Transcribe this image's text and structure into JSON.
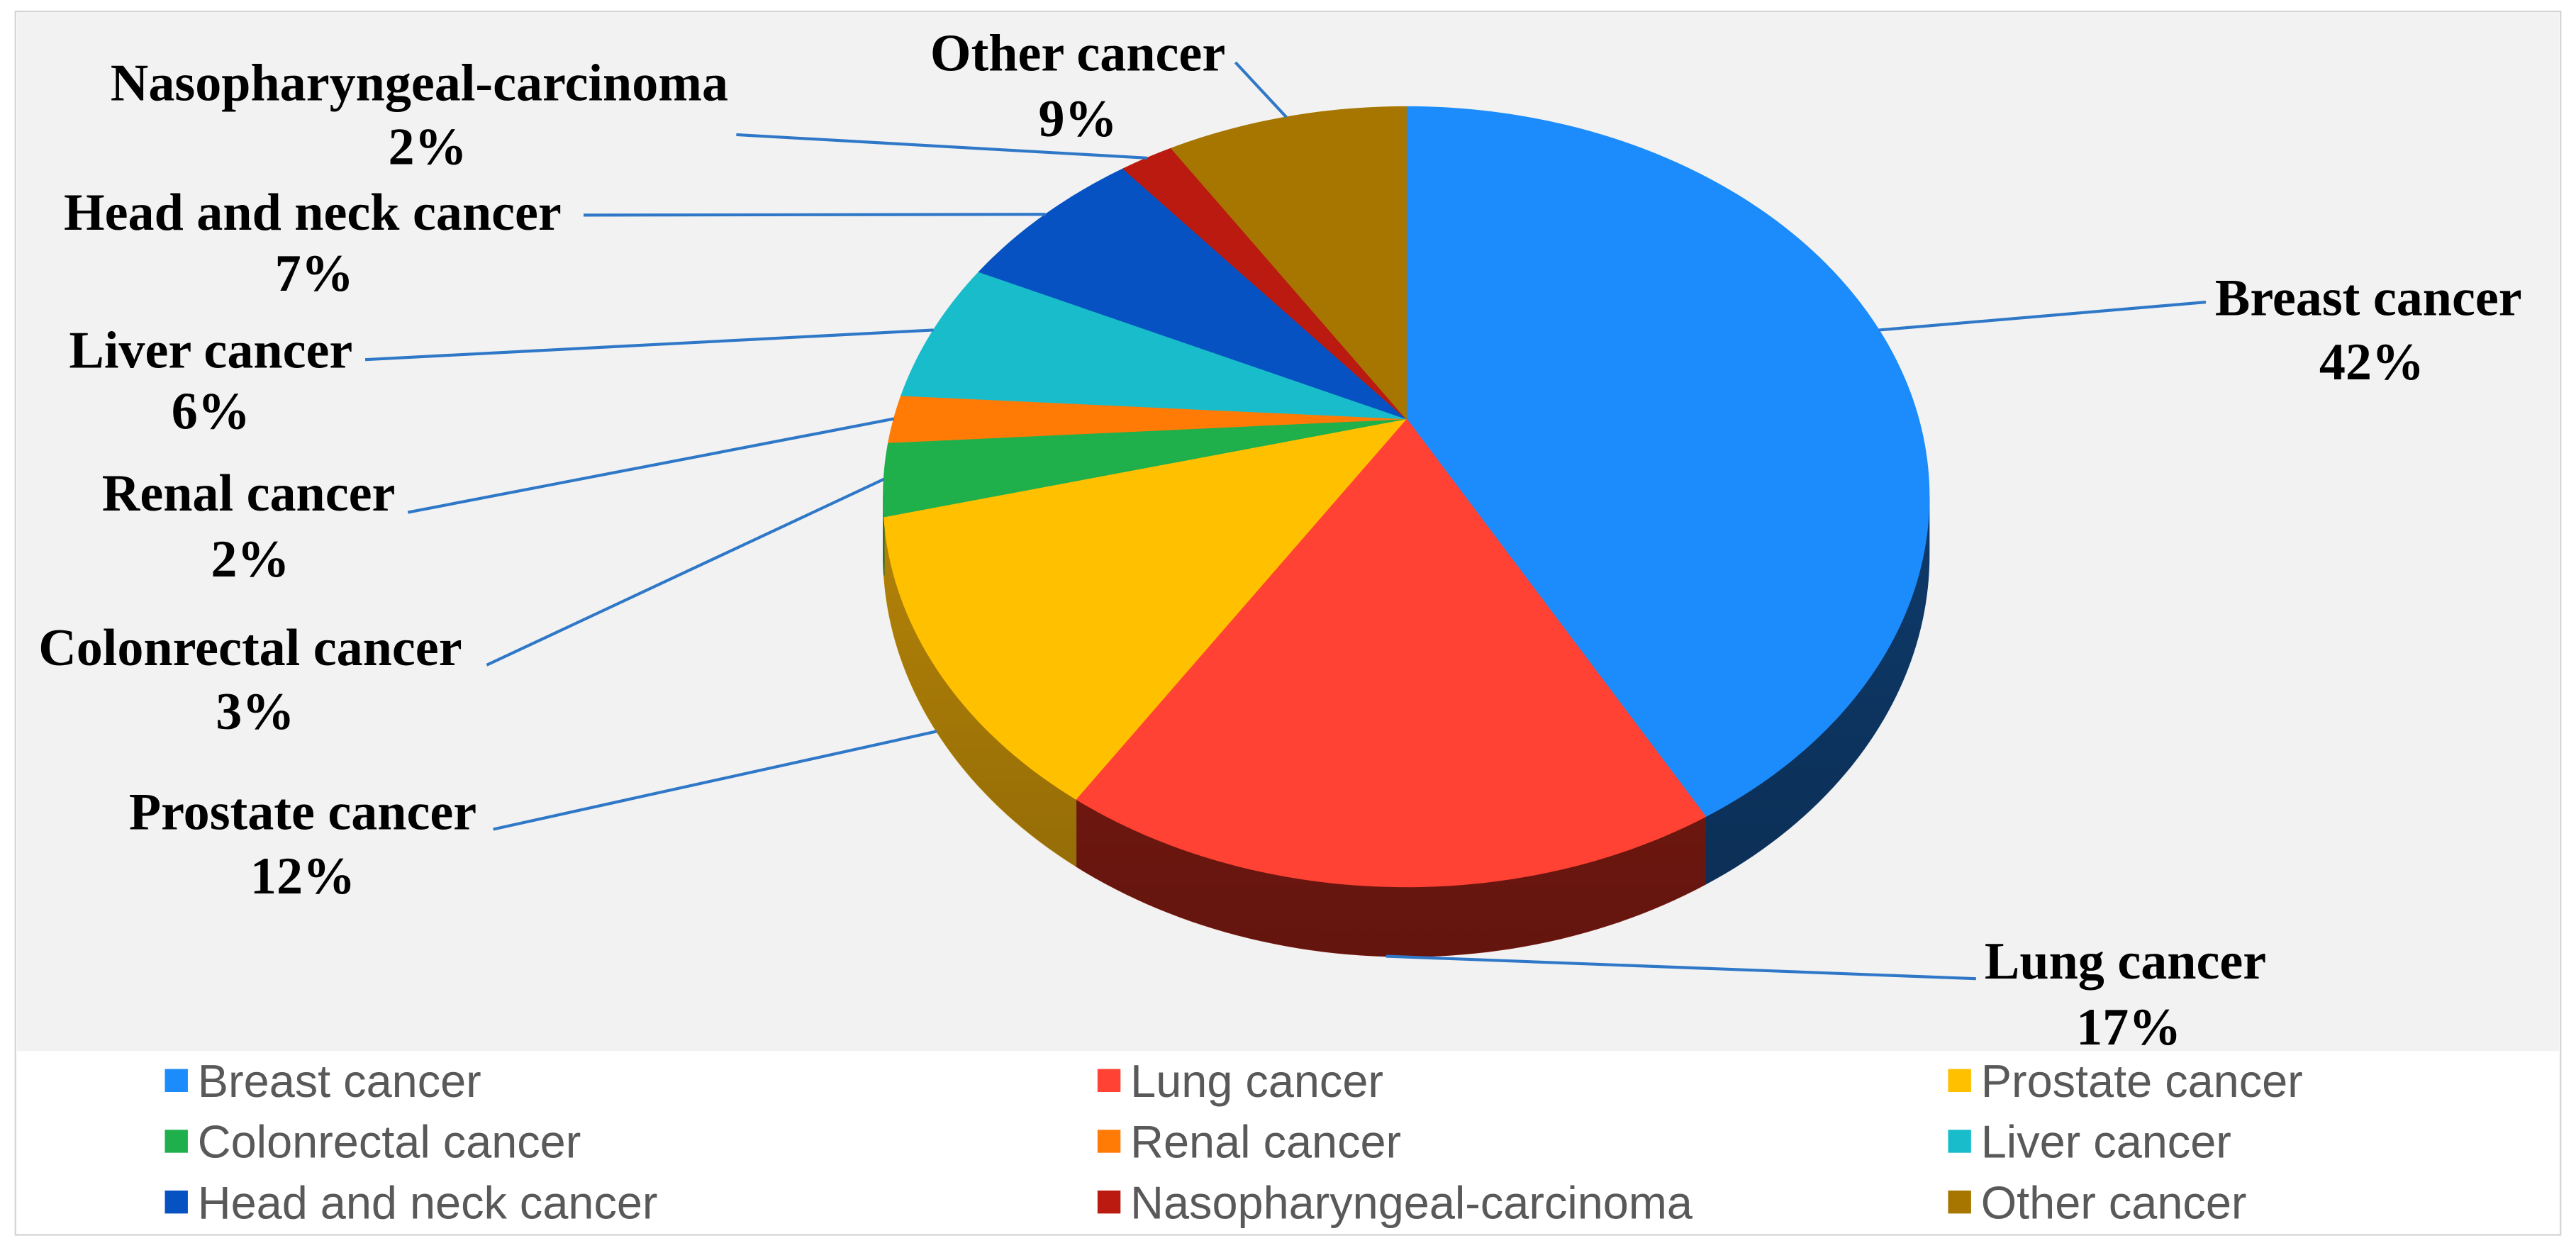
{
  "chart_data": {
    "type": "pie",
    "is_3d": true,
    "categories": [
      "Breast cancer",
      "Lung cancer",
      "Prostate cancer",
      "Colonrectal cancer",
      "Renal cancer",
      "Liver cancer",
      "Head and neck cancer",
      "Nasopharyngeal-carcinoma",
      "Other cancer"
    ],
    "values": [
      42,
      17,
      12,
      3,
      2,
      6,
      7,
      2,
      9
    ],
    "value_labels": [
      "42%",
      "17%",
      "12%",
      "3%",
      "2%",
      "6%",
      "7%",
      "2%",
      "9%"
    ],
    "colors": [
      "#1C8CFC",
      "#FF4233",
      "#FFC000",
      "#1FAF4B",
      "#FF7B06",
      "#19BCCB",
      "#0752C2",
      "#BA1A10",
      "#A67600"
    ],
    "side_colors": [
      "#0E3A6A",
      "#7F1B12",
      "#B58408",
      "#137032",
      "#A64F04",
      "#0E7882",
      "#053583",
      "#7A0F09",
      "#6E4E00"
    ],
    "legend": "bottom"
  }
}
